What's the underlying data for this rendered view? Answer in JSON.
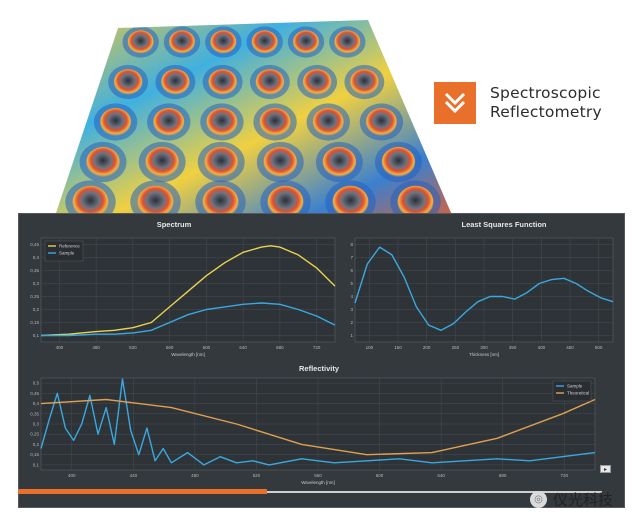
{
  "brand": {
    "name_line1": "Spectroscopic",
    "name_line2": "Reflectometry",
    "logo_icon": "double-chevron-down-icon",
    "accent": "#e8702a"
  },
  "watermark": {
    "text": "仪光科技",
    "icon": "wechat-icon"
  },
  "slider": {
    "progress": 0.42
  },
  "chart_data": [
    {
      "type": "line",
      "title": "Spectrum",
      "xlabel": "Wavelength [nm]",
      "x_ticks": [
        "400",
        "480",
        "520",
        "560",
        "600",
        "640",
        "680",
        "720"
      ],
      "y_ticks": [
        "0,1",
        "0,15",
        "0,2",
        "0,25",
        "0,3",
        "0,35",
        "0,4",
        "0,45"
      ],
      "xlim": [
        400,
        720
      ],
      "ylim": [
        0.075,
        0.475
      ],
      "legend": "top-left",
      "series": [
        {
          "name": "Reference",
          "color": "#e8d44d",
          "x": [
            400,
            430,
            460,
            480,
            500,
            520,
            540,
            560,
            580,
            600,
            620,
            640,
            650,
            660,
            680,
            700,
            720
          ],
          "y": [
            0.1,
            0.105,
            0.115,
            0.12,
            0.13,
            0.15,
            0.21,
            0.27,
            0.33,
            0.38,
            0.42,
            0.44,
            0.445,
            0.44,
            0.41,
            0.36,
            0.29
          ]
        },
        {
          "name": "Sample",
          "color": "#3aa8e0",
          "x": [
            400,
            430,
            460,
            480,
            500,
            520,
            540,
            560,
            580,
            600,
            620,
            640,
            660,
            680,
            700,
            720
          ],
          "y": [
            0.1,
            0.1,
            0.105,
            0.105,
            0.11,
            0.12,
            0.15,
            0.18,
            0.2,
            0.21,
            0.22,
            0.225,
            0.22,
            0.2,
            0.175,
            0.14
          ]
        }
      ]
    },
    {
      "type": "line",
      "title": "Least Squares Function",
      "xlabel": "Thickness [nm]",
      "x_ticks": [
        "100",
        "150",
        "200",
        "250",
        "300",
        "350",
        "400",
        "450",
        "500"
      ],
      "y_ticks": [
        "1",
        "2",
        "3",
        "4",
        "5",
        "6",
        "7",
        "8"
      ],
      "xlim": [
        100,
        520
      ],
      "ylim": [
        0.5,
        8.5
      ],
      "series": [
        {
          "name": "",
          "color": "#3aa8e0",
          "x": [
            100,
            120,
            140,
            160,
            180,
            200,
            220,
            240,
            260,
            280,
            300,
            320,
            340,
            360,
            380,
            400,
            420,
            440,
            460,
            480,
            500,
            520
          ],
          "y": [
            3.5,
            6.5,
            7.8,
            7.2,
            5.5,
            3.2,
            1.8,
            1.4,
            1.9,
            2.8,
            3.6,
            4.0,
            4.0,
            3.8,
            4.3,
            5.0,
            5.3,
            5.4,
            5.0,
            4.4,
            3.9,
            3.6
          ]
        }
      ]
    },
    {
      "type": "line",
      "title": "Reflectivity",
      "xlabel": "Wavelength [nm]",
      "x_ticks": [
        "400",
        "440",
        "480",
        "520",
        "560",
        "600",
        "640",
        "680",
        "720"
      ],
      "y_ticks": [
        "0,1",
        "0,15",
        "0,2",
        "0,25",
        "0,3",
        "0,35",
        "0,4",
        "0,45",
        "0,5"
      ],
      "xlim": [
        400,
        740
      ],
      "ylim": [
        0.075,
        0.525
      ],
      "legend": "top-right",
      "series": [
        {
          "name": "Sample",
          "color": "#3aa8e0",
          "x": [
            400,
            405,
            410,
            415,
            420,
            425,
            430,
            435,
            440,
            445,
            450,
            455,
            460,
            465,
            470,
            475,
            480,
            490,
            500,
            510,
            520,
            530,
            540,
            560,
            580,
            600,
            620,
            640,
            660,
            680,
            700,
            720,
            740
          ],
          "y": [
            0.18,
            0.32,
            0.45,
            0.28,
            0.22,
            0.3,
            0.44,
            0.25,
            0.38,
            0.2,
            0.52,
            0.27,
            0.15,
            0.28,
            0.12,
            0.18,
            0.11,
            0.16,
            0.1,
            0.14,
            0.11,
            0.12,
            0.1,
            0.13,
            0.11,
            0.12,
            0.13,
            0.11,
            0.12,
            0.13,
            0.12,
            0.14,
            0.16
          ]
        },
        {
          "name": "Theoretical",
          "color": "#e0a050",
          "x": [
            400,
            440,
            480,
            520,
            560,
            600,
            640,
            680,
            720,
            740
          ],
          "y": [
            0.4,
            0.42,
            0.38,
            0.3,
            0.2,
            0.15,
            0.16,
            0.23,
            0.35,
            0.42
          ]
        }
      ]
    }
  ]
}
